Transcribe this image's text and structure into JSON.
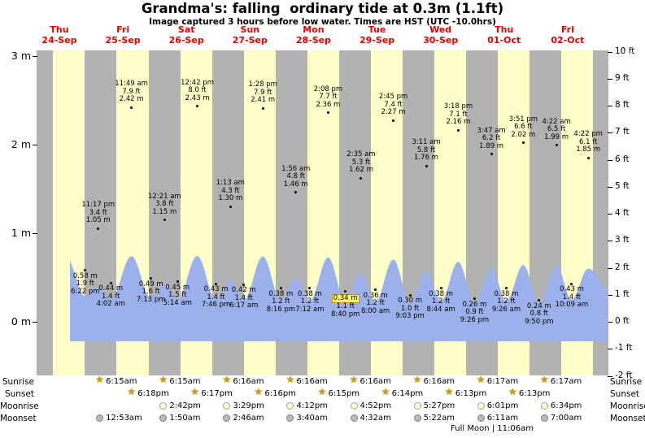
{
  "title": "Grandma's: falling  ordinary tide at 0.3m (1.1ft)",
  "subtitle": "Image captured 3 hours before low water. Times are HST (UTC -10.0hrs)",
  "footnote": "Full Moon | 11:06am",
  "colors": {
    "day_band": "#ffffc9",
    "night_band": "#b2b2b2",
    "tide_fill": "#9cb1ec",
    "day_label": "#e60000",
    "highlight_bg": "#ffff60",
    "highlight_border": "#dd8800"
  },
  "chart_data": {
    "type": "area",
    "title": "Grandma's tide heights and times",
    "y_left_unit": "m",
    "y_right_unit": "ft",
    "left_ticks": [
      {
        "v": 3,
        "label": "3 m"
      },
      {
        "v": 2,
        "label": "2 m"
      },
      {
        "v": 1,
        "label": "1 m"
      },
      {
        "v": 0,
        "label": "0 m"
      }
    ],
    "right_ticks": [
      {
        "v": 10,
        "label": "10 ft"
      },
      {
        "v": 9,
        "label": "9 ft"
      },
      {
        "v": 8,
        "label": "8 ft"
      },
      {
        "v": 7,
        "label": "7 ft"
      },
      {
        "v": 6,
        "label": "6 ft"
      },
      {
        "v": 5,
        "label": "5 ft"
      },
      {
        "v": 4,
        "label": "4 ft"
      },
      {
        "v": 3,
        "label": "3 ft"
      },
      {
        "v": 2,
        "label": "2 ft"
      },
      {
        "v": 1,
        "label": "1 ft"
      },
      {
        "v": 0,
        "label": "0 ft"
      },
      {
        "v": -1,
        "label": "-1 ft"
      },
      {
        "v": -2,
        "label": "-2 ft"
      }
    ],
    "days": [
      {
        "label": "Thu",
        "date": "24-Sep",
        "events": [
          {
            "type": "low",
            "time": "6:22 pm",
            "t": 18.37,
            "m": "0.58",
            "ft": "1.9"
          },
          {
            "type": "high",
            "time": "11:17 pm",
            "t": 23.28,
            "m": "1.05",
            "ft": "3.4"
          }
        ]
      },
      {
        "label": "Fri",
        "date": "25-Sep",
        "events": [
          {
            "type": "low",
            "time": "4:02 am",
            "t": 4.03,
            "m": "0.44",
            "ft": "1.4"
          },
          {
            "type": "high",
            "time": "11:49 am",
            "t": 11.82,
            "m": "2.42",
            "ft": "7.9"
          },
          {
            "type": "low",
            "time": "7:13 pm",
            "t": 19.22,
            "m": "0.49",
            "ft": "1.6"
          }
        ]
      },
      {
        "label": "Sat",
        "date": "26-Sep",
        "events": [
          {
            "type": "high",
            "time": "12:21 am",
            "t": 0.35,
            "m": "1.15",
            "ft": "3.8"
          },
          {
            "type": "low",
            "time": "5:14 am",
            "t": 5.23,
            "m": "0.45",
            "ft": "1.5"
          },
          {
            "type": "high",
            "time": "12:42 pm",
            "t": 12.7,
            "m": "2.43",
            "ft": "8.0"
          },
          {
            "type": "low",
            "time": "7:46 pm",
            "t": 19.77,
            "m": "0.43",
            "ft": "1.4"
          }
        ]
      },
      {
        "label": "Sun",
        "date": "27-Sep",
        "events": [
          {
            "type": "high",
            "time": "1:13 am",
            "t": 1.22,
            "m": "1.30",
            "ft": "4.3"
          },
          {
            "type": "low",
            "time": "6:17 am",
            "t": 6.28,
            "m": "0.42",
            "ft": "1.4"
          },
          {
            "type": "high",
            "time": "1:28 pm",
            "t": 13.47,
            "m": "2.41",
            "ft": "7.9"
          },
          {
            "type": "low",
            "time": "8:16 pm",
            "t": 20.27,
            "m": "0.38",
            "ft": "1.2"
          }
        ]
      },
      {
        "label": "Mon",
        "date": "28-Sep",
        "events": [
          {
            "type": "high",
            "time": "1:56 am",
            "t": 1.93,
            "m": "1.46",
            "ft": "4.8"
          },
          {
            "type": "low",
            "time": "7:12 am",
            "t": 7.2,
            "m": "0.38",
            "ft": "1.2"
          },
          {
            "type": "high",
            "time": "2:08 pm",
            "t": 14.13,
            "m": "2.36",
            "ft": "7.7"
          },
          {
            "type": "low",
            "time": "8:40 pm",
            "t": 20.67,
            "m": "0.34",
            "ft": "1.1",
            "highlight": true
          }
        ]
      },
      {
        "label": "Tue",
        "date": "29-Sep",
        "events": [
          {
            "type": "high",
            "time": "2:35 am",
            "t": 2.58,
            "m": "1.62",
            "ft": "5.3"
          },
          {
            "type": "low",
            "time": "8:00 am",
            "t": 8.0,
            "m": "0.36",
            "ft": "1.2"
          },
          {
            "type": "high",
            "time": "2:45 pm",
            "t": 14.75,
            "m": "2.27",
            "ft": "7.4"
          },
          {
            "type": "low",
            "time": "9:03 pm",
            "t": 21.05,
            "m": "0.30",
            "ft": "1.0"
          }
        ]
      },
      {
        "label": "Wed",
        "date": "30-Sep",
        "events": [
          {
            "type": "high",
            "time": "3:11 am",
            "t": 3.18,
            "m": "1.76",
            "ft": "5.8"
          },
          {
            "type": "low",
            "time": "8:44 am",
            "t": 8.73,
            "m": "0.38",
            "ft": "1.2"
          },
          {
            "type": "high",
            "time": "3:18 pm",
            "t": 15.3,
            "m": "2.16",
            "ft": "7.1"
          },
          {
            "type": "low",
            "time": "9:26 pm",
            "t": 21.43,
            "m": "0.26",
            "ft": "0.9"
          }
        ]
      },
      {
        "label": "Thu",
        "date": "01-Oct",
        "events": [
          {
            "type": "high",
            "time": "3:47 am",
            "t": 3.78,
            "m": "1.89",
            "ft": "6.2"
          },
          {
            "type": "low",
            "time": "9:26 am",
            "t": 9.43,
            "m": "0.38",
            "ft": "1.2"
          },
          {
            "type": "high",
            "time": "3:51 pm",
            "t": 15.85,
            "m": "2.02",
            "ft": "6.6"
          },
          {
            "type": "low",
            "time": "9:50 pm",
            "t": 21.83,
            "m": "0.24",
            "ft": "0.8"
          }
        ]
      },
      {
        "label": "Fri",
        "date": "02-Oct",
        "events": [
          {
            "type": "high",
            "time": "4:22 am",
            "t": 4.37,
            "m": "1.99",
            "ft": "6.5"
          },
          {
            "type": "low",
            "time": "10:09 am",
            "t": 10.15,
            "m": "0.43",
            "ft": "1.4"
          },
          {
            "type": "high",
            "time": "4:22 pm",
            "t": 16.37,
            "m": "1.85",
            "ft": "6.1"
          }
        ]
      }
    ]
  },
  "astro": {
    "rows": [
      {
        "label": "Sunrise",
        "icon": "sunrise-icon",
        "align": "boundary",
        "entries": [
          {
            "day": 1,
            "time": "6:15am"
          },
          {
            "day": 2,
            "time": "6:15am"
          },
          {
            "day": 3,
            "time": "6:16am"
          },
          {
            "day": 4,
            "time": "6:16am"
          },
          {
            "day": 5,
            "time": "6:16am"
          },
          {
            "day": 6,
            "time": "6:16am"
          },
          {
            "day": 7,
            "time": "6:17am"
          },
          {
            "day": 8,
            "time": "6:17am"
          }
        ]
      },
      {
        "label": "Sunset",
        "icon": "sunset-icon",
        "align": "mid",
        "entries": [
          {
            "day": 1,
            "time": "6:18pm"
          },
          {
            "day": 2,
            "time": "6:17pm"
          },
          {
            "day": 3,
            "time": "6:16pm"
          },
          {
            "day": 4,
            "time": "6:15pm"
          },
          {
            "day": 5,
            "time": "6:14pm"
          },
          {
            "day": 6,
            "time": "6:13pm"
          },
          {
            "day": 7,
            "time": "6:13pm"
          }
        ]
      },
      {
        "label": "Moonrise",
        "icon": "moonrise-icon",
        "align": "boundary",
        "entries": [
          {
            "day": 2,
            "time": "2:42pm"
          },
          {
            "day": 3,
            "time": "3:29pm"
          },
          {
            "day": 4,
            "time": "4:12pm"
          },
          {
            "day": 5,
            "time": "4:52pm"
          },
          {
            "day": 6,
            "time": "5:27pm"
          },
          {
            "day": 7,
            "time": "6:01pm"
          },
          {
            "day": 8,
            "time": "6:34pm"
          }
        ]
      },
      {
        "label": "Moonset",
        "icon": "moonset-icon",
        "align": "boundary",
        "entries": [
          {
            "day": 1,
            "time": "12:53am"
          },
          {
            "day": 2,
            "time": "1:50am"
          },
          {
            "day": 3,
            "time": "2:46am"
          },
          {
            "day": 4,
            "time": "3:40am"
          },
          {
            "day": 5,
            "time": "4:32am"
          },
          {
            "day": 6,
            "time": "5:22am"
          },
          {
            "day": 7,
            "time": "6:11am"
          },
          {
            "day": 8,
            "time": "7:00am"
          }
        ]
      }
    ]
  }
}
